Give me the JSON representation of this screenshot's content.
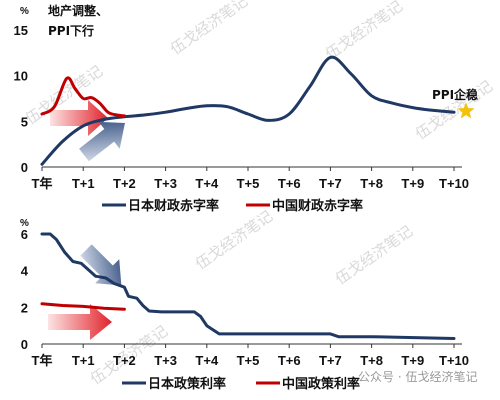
{
  "chart_data": [
    {
      "type": "line",
      "categories": [
        "T年",
        "T+1",
        "T+2",
        "T+3",
        "T+4",
        "T+5",
        "T+6",
        "T+7",
        "T+8",
        "T+9",
        "T+10"
      ],
      "unit": "%",
      "ylim": [
        0,
        15
      ],
      "yticks": [
        0,
        5,
        10,
        15
      ],
      "annotation": "地产调整、\nPPI下行",
      "end_label": "PPI企稳",
      "series": [
        {
          "name": "日本财政赤字率",
          "color": "#1f3864",
          "points": [
            [
              0,
              0.3
            ],
            [
              0.5,
              2.8
            ],
            [
              1,
              4.5
            ],
            [
              1.5,
              5.2
            ],
            [
              2,
              5.5
            ],
            [
              2.5,
              5.7
            ],
            [
              3,
              6.0
            ],
            [
              3.5,
              6.4
            ],
            [
              4,
              6.7
            ],
            [
              4.5,
              6.6
            ],
            [
              5,
              5.8
            ],
            [
              5.5,
              5.1
            ],
            [
              6,
              5.8
            ],
            [
              6.5,
              8.8
            ],
            [
              7,
              12.0
            ],
            [
              7.5,
              10.2
            ],
            [
              8,
              7.8
            ],
            [
              8.5,
              7.0
            ],
            [
              9,
              6.5
            ],
            [
              9.5,
              6.2
            ],
            [
              10,
              6.0
            ]
          ]
        },
        {
          "name": "中国财政赤字率",
          "color": "#c00000",
          "points": [
            [
              0,
              5.8
            ],
            [
              0.3,
              6.6
            ],
            [
              0.6,
              9.7
            ],
            [
              0.8,
              8.6
            ],
            [
              1,
              7.5
            ],
            [
              1.2,
              7.6
            ],
            [
              1.4,
              7.0
            ],
            [
              1.6,
              6.0
            ],
            [
              1.8,
              5.7
            ],
            [
              2,
              5.6
            ]
          ]
        }
      ]
    },
    {
      "type": "line",
      "categories": [
        "T年",
        "T+1",
        "T+2",
        "T+3",
        "T+4",
        "T+5",
        "T+6",
        "T+7",
        "T+8",
        "T+9",
        "T+10"
      ],
      "unit": "%",
      "ylim": [
        0,
        6
      ],
      "yticks": [
        0,
        2,
        4,
        6
      ],
      "series": [
        {
          "name": "日本政策利率",
          "color": "#1f3864",
          "points": [
            [
              0,
              6.0
            ],
            [
              0.2,
              6.0
            ],
            [
              0.35,
              5.7
            ],
            [
              0.55,
              5.0
            ],
            [
              0.75,
              4.5
            ],
            [
              0.95,
              4.4
            ],
            [
              1.1,
              4.1
            ],
            [
              1.3,
              3.7
            ],
            [
              1.55,
              3.6
            ],
            [
              1.75,
              3.3
            ],
            [
              2.0,
              3.1
            ],
            [
              2.1,
              2.6
            ],
            [
              2.3,
              2.5
            ],
            [
              2.45,
              2.1
            ],
            [
              2.6,
              1.8
            ],
            [
              2.9,
              1.75
            ],
            [
              3.7,
              1.75
            ],
            [
              3.85,
              1.5
            ],
            [
              4.0,
              1.0
            ],
            [
              4.3,
              0.55
            ],
            [
              5.0,
              0.55
            ],
            [
              6.0,
              0.55
            ],
            [
              7.0,
              0.55
            ],
            [
              7.2,
              0.4
            ],
            [
              8.0,
              0.4
            ],
            [
              10.0,
              0.3
            ]
          ]
        },
        {
          "name": "中国政策利率",
          "color": "#c00000",
          "points": [
            [
              0,
              2.2
            ],
            [
              0.5,
              2.1
            ],
            [
              1.0,
              2.05
            ],
            [
              1.5,
              1.95
            ],
            [
              2.0,
              1.9
            ]
          ]
        }
      ]
    }
  ],
  "watermark": {
    "text": "伍戈经济笔记",
    "source_line": "公众号 · 伍戈经济笔记"
  }
}
